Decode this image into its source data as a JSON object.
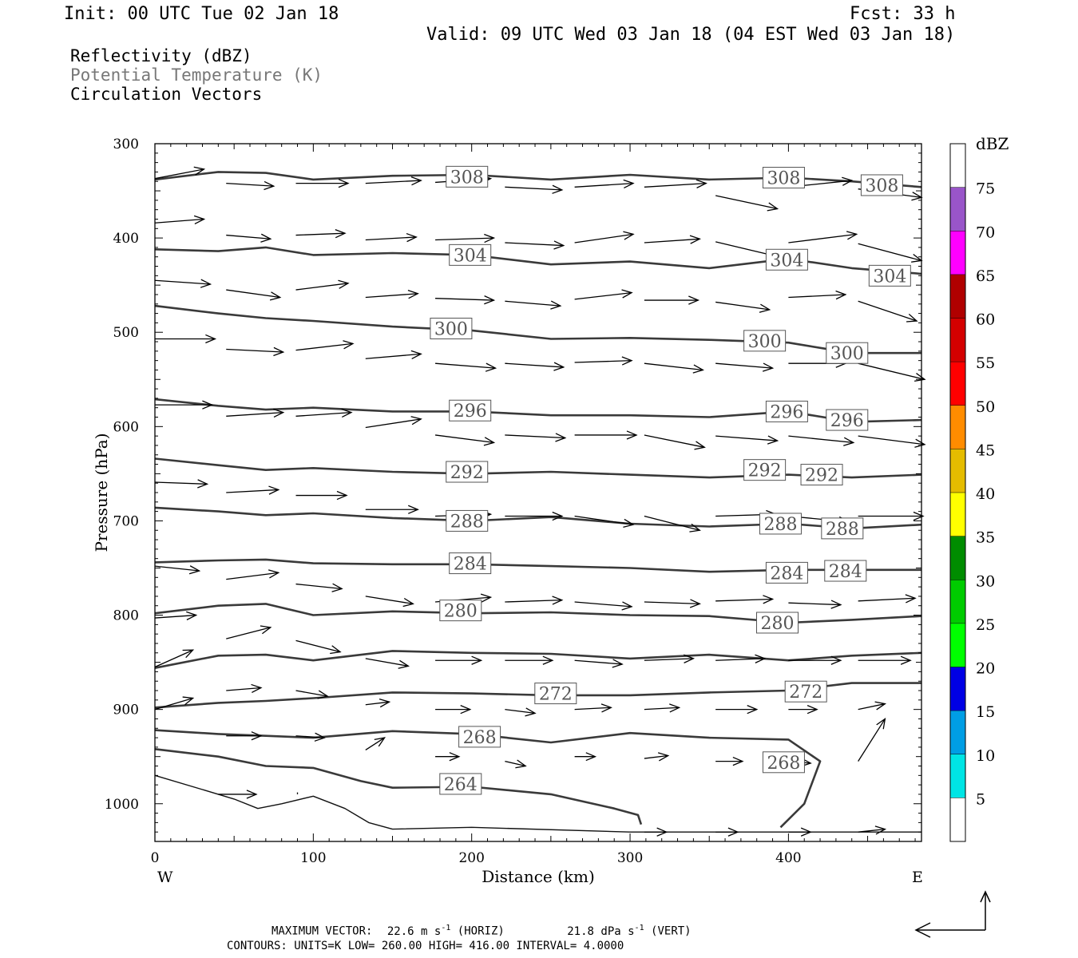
{
  "header": {
    "init": "Init: 00 UTC Tue 02 Jan 18",
    "fcst": "Fcst:   33 h",
    "valid": "Valid: 09 UTC Wed 03 Jan 18 (04 EST Wed 03 Jan 18)"
  },
  "fields": {
    "reflectivity": "Reflectivity (dBZ)",
    "theta": "Potential Temperature (K)",
    "vectors": "Circulation Vectors"
  },
  "footer": {
    "max_vector_label": "MAXIMUM VECTOR:",
    "max_horiz_value": "22.6 m s",
    "max_horiz_sup": "-1",
    "max_horiz_unit": "(HORIZ)",
    "max_vert_value": "21.8 dPa s",
    "max_vert_sup": "-1",
    "max_vert_unit": "(VERT)",
    "contours": "CONTOURS:  UNITS=K  LOW=  260.00       HIGH=  416.00        INTERVAL=    4.0000"
  },
  "chart_data": {
    "type": "line",
    "xlabel": "Distance (km)",
    "ylabel": "Pressure (hPa)",
    "xlim": [
      0,
      484
    ],
    "ylim": [
      1040,
      300
    ],
    "x_ticks": [
      0,
      100,
      200,
      300,
      400
    ],
    "y_ticks": [
      300,
      400,
      500,
      600,
      700,
      800,
      900,
      1000
    ],
    "x_left_label": "W",
    "x_right_label": "E",
    "colorbar": {
      "unit": "dBZ",
      "levels": [
        5,
        10,
        15,
        20,
        25,
        30,
        35,
        40,
        45,
        50,
        55,
        60,
        65,
        70,
        75
      ],
      "colors": [
        "#ffffff",
        "#00e5e5",
        "#009ee5",
        "#0000e5",
        "#00ff00",
        "#00cc00",
        "#008c00",
        "#ffff00",
        "#e5bc00",
        "#ff8c00",
        "#ff0000",
        "#d40000",
        "#b00000",
        "#ff00ff",
        "#9955c9",
        "#ffffff"
      ]
    },
    "contour_labels": [
      {
        "label": "308",
        "x": 197,
        "p": 335
      },
      {
        "label": "308",
        "x": 397,
        "p": 336
      },
      {
        "label": "308",
        "x": 459,
        "p": 344
      },
      {
        "label": "304",
        "x": 199,
        "p": 418
      },
      {
        "label": "304",
        "x": 399,
        "p": 423
      },
      {
        "label": "304",
        "x": 464,
        "p": 440
      },
      {
        "label": "300",
        "x": 187,
        "p": 496
      },
      {
        "label": "300",
        "x": 385,
        "p": 509
      },
      {
        "label": "300",
        "x": 437,
        "p": 522
      },
      {
        "label": "296",
        "x": 199,
        "p": 583
      },
      {
        "label": "296",
        "x": 399,
        "p": 584
      },
      {
        "label": "296",
        "x": 437,
        "p": 593
      },
      {
        "label": "292",
        "x": 197,
        "p": 648
      },
      {
        "label": "292",
        "x": 385,
        "p": 646
      },
      {
        "label": "292",
        "x": 421,
        "p": 651
      },
      {
        "label": "288",
        "x": 197,
        "p": 700
      },
      {
        "label": "288",
        "x": 395,
        "p": 703
      },
      {
        "label": "288",
        "x": 434,
        "p": 708
      },
      {
        "label": "284",
        "x": 199,
        "p": 745
      },
      {
        "label": "284",
        "x": 399,
        "p": 755
      },
      {
        "label": "284",
        "x": 436,
        "p": 753
      },
      {
        "label": "280",
        "x": 193,
        "p": 795
      },
      {
        "label": "280",
        "x": 393,
        "p": 808
      },
      {
        "label": "272",
        "x": 253,
        "p": 883
      },
      {
        "label": "272",
        "x": 411,
        "p": 881
      },
      {
        "label": "268",
        "x": 205,
        "p": 929
      },
      {
        "label": "268",
        "x": 397,
        "p": 956
      },
      {
        "label": "264",
        "x": 193,
        "p": 979
      }
    ],
    "theta_contours": [
      {
        "theta": 308,
        "x": [
          0,
          40,
          70,
          100,
          150,
          200,
          250,
          300,
          350,
          400,
          440,
          484
        ],
        "p": [
          338,
          330,
          331,
          338,
          334,
          333,
          338,
          333,
          338,
          336,
          340,
          346
        ]
      },
      {
        "theta": 304,
        "x": [
          0,
          40,
          70,
          100,
          150,
          200,
          250,
          300,
          350,
          400,
          440,
          484
        ],
        "p": [
          412,
          414,
          410,
          418,
          416,
          418,
          428,
          425,
          432,
          422,
          432,
          438
        ]
      },
      {
        "theta": 300,
        "x": [
          0,
          40,
          70,
          100,
          150,
          200,
          250,
          300,
          350,
          400,
          440,
          484
        ],
        "p": [
          472,
          480,
          485,
          488,
          494,
          498,
          507,
          506,
          508,
          511,
          522,
          522
        ]
      },
      {
        "theta": 296,
        "x": [
          0,
          40,
          70,
          100,
          150,
          200,
          250,
          300,
          350,
          400,
          440,
          484
        ],
        "p": [
          571,
          578,
          582,
          580,
          584,
          584,
          588,
          588,
          590,
          584,
          595,
          593
        ]
      },
      {
        "theta": 292,
        "x": [
          0,
          40,
          70,
          100,
          150,
          200,
          250,
          300,
          350,
          400,
          440,
          484
        ],
        "p": [
          634,
          641,
          646,
          644,
          648,
          650,
          648,
          651,
          654,
          651,
          654,
          651
        ]
      },
      {
        "theta": 288,
        "x": [
          0,
          40,
          70,
          100,
          150,
          200,
          250,
          300,
          350,
          400,
          440,
          484
        ],
        "p": [
          686,
          690,
          694,
          692,
          697,
          700,
          696,
          703,
          706,
          703,
          708,
          704
        ]
      },
      {
        "theta": 284,
        "x": [
          0,
          40,
          70,
          100,
          150,
          200,
          250,
          300,
          350,
          400,
          440,
          484
        ],
        "p": [
          744,
          742,
          741,
          745,
          746,
          746,
          748,
          750,
          754,
          752,
          752,
          752
        ]
      },
      {
        "theta": 280,
        "x": [
          0,
          40,
          70,
          100,
          150,
          200,
          250,
          300,
          350,
          400,
          440,
          484
        ],
        "p": [
          798,
          790,
          788,
          800,
          796,
          798,
          797,
          800,
          801,
          808,
          805,
          801
        ]
      },
      {
        "theta": 276,
        "x": [
          0,
          40,
          70,
          100,
          150,
          200,
          250,
          300,
          350,
          400,
          440,
          484
        ],
        "p": [
          856,
          843,
          842,
          848,
          838,
          840,
          841,
          846,
          842,
          848,
          843,
          840
        ]
      },
      {
        "theta": 272,
        "x": [
          0,
          40,
          70,
          100,
          150,
          200,
          250,
          300,
          350,
          400,
          440,
          484
        ],
        "p": [
          898,
          893,
          891,
          888,
          882,
          883,
          885,
          885,
          882,
          880,
          872,
          872
        ]
      },
      {
        "theta": 268,
        "x": [
          0,
          40,
          70,
          100,
          150,
          200,
          250,
          300,
          350,
          400,
          420,
          410,
          395
        ],
        "p": [
          922,
          926,
          928,
          930,
          923,
          926,
          935,
          925,
          930,
          932,
          955,
          1000,
          1025
        ]
      },
      {
        "theta": 264,
        "x": [
          0,
          40,
          70,
          100,
          130,
          150,
          200,
          250,
          290,
          305,
          307
        ],
        "p": [
          942,
          950,
          960,
          962,
          976,
          983,
          982,
          990,
          1005,
          1012,
          1022
        ]
      },
      {
        "theta": 260,
        "x": [
          0,
          30,
          50,
          65,
          80,
          100,
          120,
          135,
          150,
          200,
          300,
          484
        ],
        "p": [
          970,
          985,
          995,
          1005,
          1000,
          992,
          1005,
          1020,
          1027,
          1025,
          1030,
          1030
        ]
      }
    ],
    "vectors": [
      {
        "x": 0,
        "p": 337,
        "dx": 31,
        "dp": -10
      },
      {
        "x": 45,
        "p": 342,
        "dx": 30,
        "dp": 3
      },
      {
        "x": 89,
        "p": 342,
        "dx": 33,
        "dp": 0
      },
      {
        "x": 133,
        "p": 342,
        "dx": 35,
        "dp": -3
      },
      {
        "x": 177,
        "p": 341,
        "dx": 35,
        "dp": -4
      },
      {
        "x": 221,
        "p": 346,
        "dx": 36,
        "dp": 3
      },
      {
        "x": 265,
        "p": 346,
        "dx": 37,
        "dp": -4
      },
      {
        "x": 309,
        "p": 346,
        "dx": 39,
        "dp": -4
      },
      {
        "x": 354,
        "p": 355,
        "dx": 39,
        "dp": 14
      },
      {
        "x": 400,
        "p": 346,
        "dx": 40,
        "dp": -7
      },
      {
        "x": 444,
        "p": 348,
        "dx": 40,
        "dp": 9
      },
      {
        "x": 0,
        "p": 384,
        "dx": 31,
        "dp": -4
      },
      {
        "x": 45,
        "p": 397,
        "dx": 28,
        "dp": 4
      },
      {
        "x": 89,
        "p": 397,
        "dx": 31,
        "dp": -2
      },
      {
        "x": 133,
        "p": 402,
        "dx": 32,
        "dp": -3
      },
      {
        "x": 177,
        "p": 402,
        "dx": 37,
        "dp": -2
      },
      {
        "x": 221,
        "p": 405,
        "dx": 37,
        "dp": 3
      },
      {
        "x": 265,
        "p": 405,
        "dx": 37,
        "dp": -9
      },
      {
        "x": 309,
        "p": 405,
        "dx": 35,
        "dp": -4
      },
      {
        "x": 354,
        "p": 404,
        "dx": 40,
        "dp": 16
      },
      {
        "x": 400,
        "p": 405,
        "dx": 43,
        "dp": -9
      },
      {
        "x": 444,
        "p": 406,
        "dx": 40,
        "dp": 18
      },
      {
        "x": 0,
        "p": 445,
        "dx": 35,
        "dp": 4
      },
      {
        "x": 45,
        "p": 455,
        "dx": 34,
        "dp": 8
      },
      {
        "x": 89,
        "p": 455,
        "dx": 33,
        "dp": -7
      },
      {
        "x": 133,
        "p": 463,
        "dx": 33,
        "dp": -4
      },
      {
        "x": 177,
        "p": 464,
        "dx": 37,
        "dp": 2
      },
      {
        "x": 221,
        "p": 467,
        "dx": 35,
        "dp": 5
      },
      {
        "x": 265,
        "p": 465,
        "dx": 36,
        "dp": -7
      },
      {
        "x": 309,
        "p": 466,
        "dx": 34,
        "dp": 0
      },
      {
        "x": 354,
        "p": 468,
        "dx": 34,
        "dp": 8
      },
      {
        "x": 400,
        "p": 463,
        "dx": 36,
        "dp": -3
      },
      {
        "x": 444,
        "p": 467,
        "dx": 37,
        "dp": 21
      },
      {
        "x": 0,
        "p": 507,
        "dx": 38,
        "dp": 0
      },
      {
        "x": 45,
        "p": 518,
        "dx": 36,
        "dp": 3
      },
      {
        "x": 89,
        "p": 519,
        "dx": 36,
        "dp": -7
      },
      {
        "x": 133,
        "p": 528,
        "dx": 35,
        "dp": -5
      },
      {
        "x": 177,
        "p": 533,
        "dx": 38,
        "dp": 5
      },
      {
        "x": 221,
        "p": 533,
        "dx": 37,
        "dp": 4
      },
      {
        "x": 265,
        "p": 532,
        "dx": 36,
        "dp": -2
      },
      {
        "x": 309,
        "p": 533,
        "dx": 37,
        "dp": 7
      },
      {
        "x": 354,
        "p": 533,
        "dx": 36,
        "dp": 5
      },
      {
        "x": 400,
        "p": 533,
        "dx": 36,
        "dp": 0
      },
      {
        "x": 444,
        "p": 533,
        "dx": 42,
        "dp": 17
      },
      {
        "x": 0,
        "p": 577,
        "dx": 36,
        "dp": 0
      },
      {
        "x": 45,
        "p": 589,
        "dx": 36,
        "dp": -4
      },
      {
        "x": 89,
        "p": 589,
        "dx": 35,
        "dp": -4
      },
      {
        "x": 133,
        "p": 601,
        "dx": 35,
        "dp": -9
      },
      {
        "x": 177,
        "p": 609,
        "dx": 37,
        "dp": 8
      },
      {
        "x": 221,
        "p": 609,
        "dx": 38,
        "dp": 3
      },
      {
        "x": 265,
        "p": 609,
        "dx": 39,
        "dp": 0
      },
      {
        "x": 309,
        "p": 609,
        "dx": 38,
        "dp": 13
      },
      {
        "x": 354,
        "p": 610,
        "dx": 39,
        "dp": 5
      },
      {
        "x": 400,
        "p": 610,
        "dx": 41,
        "dp": 7
      },
      {
        "x": 444,
        "p": 610,
        "dx": 42,
        "dp": 9
      },
      {
        "x": 0,
        "p": 659,
        "dx": 33,
        "dp": 2
      },
      {
        "x": 45,
        "p": 670,
        "dx": 33,
        "dp": -3
      },
      {
        "x": 89,
        "p": 673,
        "dx": 32,
        "dp": 0
      },
      {
        "x": 133,
        "p": 688,
        "dx": 33,
        "dp": 0
      },
      {
        "x": 177,
        "p": 695,
        "dx": 35,
        "dp": -2
      },
      {
        "x": 221,
        "p": 695,
        "dx": 36,
        "dp": 0
      },
      {
        "x": 265,
        "p": 695,
        "dx": 37,
        "dp": 9
      },
      {
        "x": 309,
        "p": 695,
        "dx": 35,
        "dp": 15
      },
      {
        "x": 354,
        "p": 695,
        "dx": 38,
        "dp": -2
      },
      {
        "x": 400,
        "p": 695,
        "dx": 38,
        "dp": 6
      },
      {
        "x": 444,
        "p": 695,
        "dx": 41,
        "dp": 0
      },
      {
        "x": 0,
        "p": 748,
        "dx": 28,
        "dp": 5
      },
      {
        "x": 45,
        "p": 762,
        "dx": 33,
        "dp": -7
      },
      {
        "x": 89,
        "p": 767,
        "dx": 29,
        "dp": 5
      },
      {
        "x": 133,
        "p": 780,
        "dx": 30,
        "dp": 8
      },
      {
        "x": 177,
        "p": 786,
        "dx": 35,
        "dp": -5
      },
      {
        "x": 221,
        "p": 786,
        "dx": 36,
        "dp": -2
      },
      {
        "x": 265,
        "p": 786,
        "dx": 36,
        "dp": 5
      },
      {
        "x": 309,
        "p": 786,
        "dx": 35,
        "dp": 2
      },
      {
        "x": 354,
        "p": 785,
        "dx": 36,
        "dp": -2
      },
      {
        "x": 400,
        "p": 787,
        "dx": 33,
        "dp": 2
      },
      {
        "x": 444,
        "p": 785,
        "dx": 36,
        "dp": -3
      },
      {
        "x": 0,
        "p": 803,
        "dx": 26,
        "dp": -3
      },
      {
        "x": 45,
        "p": 825,
        "dx": 28,
        "dp": -12
      },
      {
        "x": 89,
        "p": 827,
        "dx": 28,
        "dp": 12
      },
      {
        "x": 133,
        "p": 846,
        "dx": 27,
        "dp": 8
      },
      {
        "x": 177,
        "p": 848,
        "dx": 29,
        "dp": 0
      },
      {
        "x": 221,
        "p": 848,
        "dx": 30,
        "dp": 0
      },
      {
        "x": 265,
        "p": 848,
        "dx": 30,
        "dp": 4
      },
      {
        "x": 309,
        "p": 848,
        "dx": 31,
        "dp": -2
      },
      {
        "x": 354,
        "p": 848,
        "dx": 31,
        "dp": -2
      },
      {
        "x": 400,
        "p": 848,
        "dx": 33,
        "dp": 0
      },
      {
        "x": 444,
        "p": 848,
        "dx": 33,
        "dp": 0
      },
      {
        "x": 0,
        "p": 855,
        "dx": 24,
        "dp": -18
      },
      {
        "x": 45,
        "p": 880,
        "dx": 22,
        "dp": -3
      },
      {
        "x": 89,
        "p": 880,
        "dx": 20,
        "dp": 6
      },
      {
        "x": 133,
        "p": 895,
        "dx": 15,
        "dp": -3
      },
      {
        "x": 177,
        "p": 900,
        "dx": 22,
        "dp": 0
      },
      {
        "x": 221,
        "p": 900,
        "dx": 19,
        "dp": 4
      },
      {
        "x": 265,
        "p": 900,
        "dx": 23,
        "dp": -2
      },
      {
        "x": 309,
        "p": 900,
        "dx": 22,
        "dp": -2
      },
      {
        "x": 354,
        "p": 900,
        "dx": 26,
        "dp": 0
      },
      {
        "x": 400,
        "p": 900,
        "dx": 18,
        "dp": 0
      },
      {
        "x": 444,
        "p": 900,
        "dx": 17,
        "dp": -6
      },
      {
        "x": 0,
        "p": 900,
        "dx": 24,
        "dp": -12
      },
      {
        "x": 45,
        "p": 928,
        "dx": 22,
        "dp": 0
      },
      {
        "x": 89,
        "p": 928,
        "dx": 18,
        "dp": 2
      },
      {
        "x": 133,
        "p": 943,
        "dx": 12,
        "dp": -13
      },
      {
        "x": 177,
        "p": 950,
        "dx": 15,
        "dp": 0
      },
      {
        "x": 221,
        "p": 955,
        "dx": 13,
        "dp": 5
      },
      {
        "x": 265,
        "p": 950,
        "dx": 13,
        "dp": 0
      },
      {
        "x": 309,
        "p": 952,
        "dx": 15,
        "dp": -3
      },
      {
        "x": 354,
        "p": 955,
        "dx": 17,
        "dp": 0
      },
      {
        "x": 400,
        "p": 955,
        "dx": 14,
        "dp": 2
      },
      {
        "x": 444,
        "p": 955,
        "dx": 17,
        "dp": -45
      },
      {
        "x": 40,
        "p": 990,
        "dx": 24,
        "dp": 0
      },
      {
        "x": 90,
        "p": 990,
        "dx": 0,
        "dp": -2
      },
      {
        "x": 309,
        "p": 1030,
        "dx": 14,
        "dp": 0
      },
      {
        "x": 354,
        "p": 1030,
        "dx": 14,
        "dp": 0
      },
      {
        "x": 400,
        "p": 1030,
        "dx": 14,
        "dp": 0
      },
      {
        "x": 444,
        "p": 1030,
        "dx": 17,
        "dp": -3
      }
    ]
  }
}
